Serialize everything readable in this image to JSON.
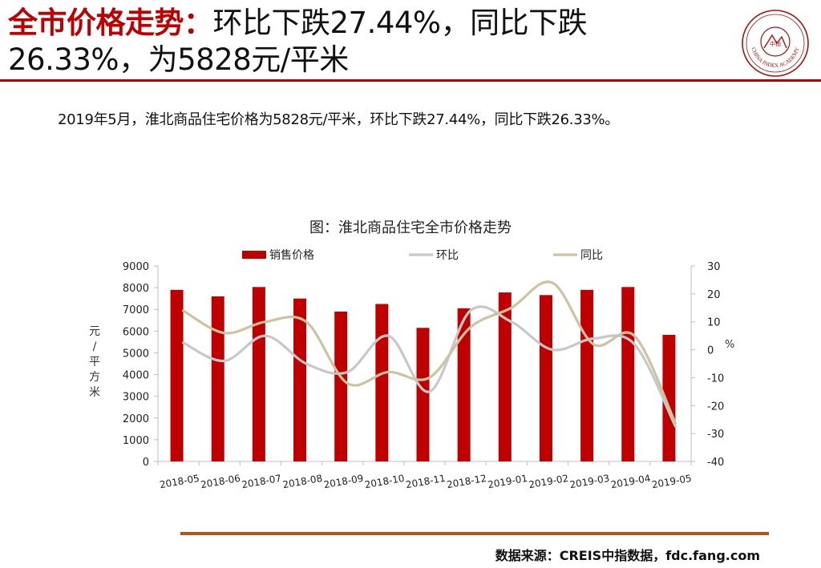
{
  "header": {
    "title_red": "全市价格走势：",
    "title_rest": "环比下跌27.44%，同比下跌26.33%，为5828元/平米",
    "logo_icon": "china-index-academy-seal-icon",
    "logo_text": "CHINA INDEX ACADEMY",
    "logo_center": "中指"
  },
  "summary": "2019年5月，淮北商品住宅价格为5828元/平米，环比下跌27.44%，同比下跌26.33%。",
  "source": "数据来源：CREIS中指数据，fdc.fang.com",
  "colors": {
    "accent": "#c00000",
    "bar": "#c00000",
    "mom_line": "#c8c8c8",
    "yoy_line": "#cdc3a0",
    "rule": "#b5541c"
  },
  "chart_data": {
    "type": "bar",
    "title": "图：淮北商品住宅全市价格走势",
    "categories": [
      "2018-05",
      "2018-06",
      "2018-07",
      "2018-08",
      "2018-09",
      "2018-10",
      "2018-11",
      "2018-12",
      "2019-01",
      "2019-02",
      "2019-03",
      "2019-04",
      "2019-05"
    ],
    "series": [
      {
        "name": "销售价格",
        "type": "bar",
        "axis": "left",
        "values": [
          7900,
          7600,
          8030,
          7500,
          6900,
          7250,
          6150,
          7050,
          7780,
          7660,
          7900,
          8030,
          5828
        ]
      },
      {
        "name": "环比",
        "type": "line",
        "axis": "right",
        "values": [
          2.5,
          -4,
          5,
          -5,
          -8,
          5,
          -15,
          14,
          10,
          0,
          4,
          2,
          -27.44
        ]
      },
      {
        "name": "同比",
        "type": "line",
        "axis": "right",
        "values": [
          14,
          6,
          10,
          10,
          -12,
          -8,
          -10,
          8,
          15,
          24,
          2,
          5,
          -26.33
        ]
      }
    ],
    "ylabel_left": "元/平方米",
    "ylabel_right": "%",
    "ylim_left": [
      0,
      9000
    ],
    "yticks_left": [
      0,
      1000,
      2000,
      3000,
      4000,
      5000,
      6000,
      7000,
      8000,
      9000
    ],
    "ylim_right": [
      -40,
      30
    ],
    "yticks_right": [
      -40,
      -30,
      -20,
      -10,
      0,
      10,
      20,
      30
    ],
    "legend_position": "top",
    "grid": false
  }
}
